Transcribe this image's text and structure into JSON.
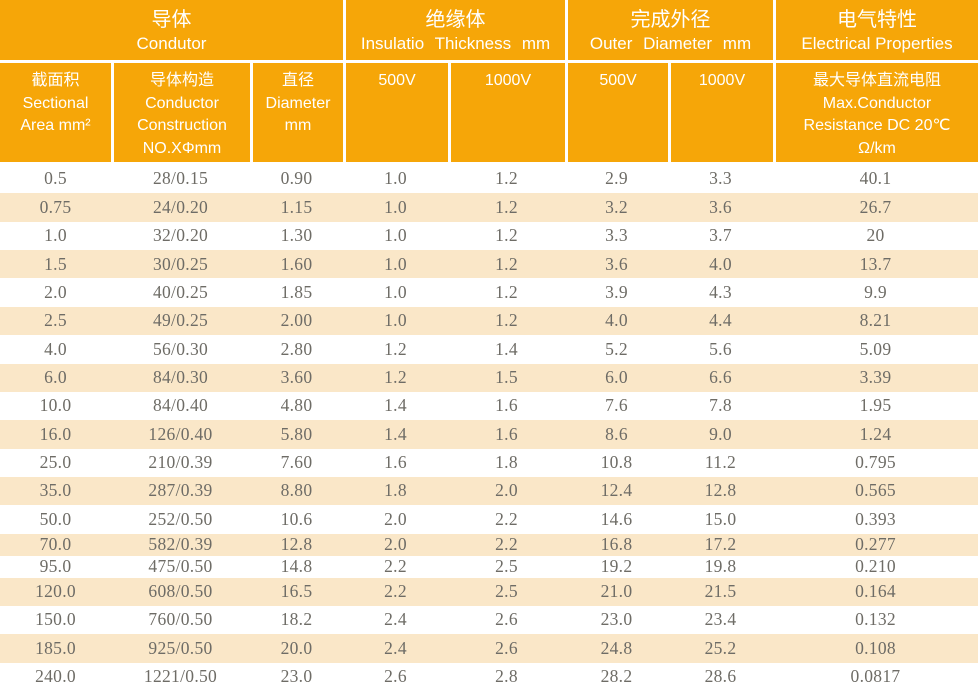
{
  "colors": {
    "header_bg": "#F6A608",
    "row_alt_bg": "#FAE7C8",
    "header_text": "#FFFFFF",
    "data_text": "#6E6C66"
  },
  "table": {
    "groups": [
      {
        "zh": "导体",
        "en": "Condutor"
      },
      {
        "zh": "绝缘体",
        "en": "Insulatio Thickness mm"
      },
      {
        "zh": "完成外径",
        "en": "Outer Diameter mm"
      },
      {
        "zh": "电气特性",
        "en": "Electrical Properties"
      }
    ],
    "columns": [
      {
        "id": "sectional-area",
        "lines": [
          "截面积",
          "Sectional",
          "Area mm²"
        ]
      },
      {
        "id": "conductor-construction",
        "lines": [
          "导体构造",
          "Conductor",
          "Construction",
          "NO.XΦmm"
        ]
      },
      {
        "id": "diameter",
        "lines": [
          "直径",
          "Diameter",
          "mm"
        ]
      },
      {
        "id": "insulation-500v",
        "lines": [
          "500V"
        ]
      },
      {
        "id": "insulation-1000v",
        "lines": [
          "1000V"
        ]
      },
      {
        "id": "outer-500v",
        "lines": [
          "500V"
        ]
      },
      {
        "id": "outer-1000v",
        "lines": [
          "1000V"
        ]
      },
      {
        "id": "max-resistance",
        "lines": [
          "最大导体直流电阻",
          "Max.Conductor",
          "Resistance DC 20℃",
          "Ω/km"
        ]
      }
    ],
    "rows": [
      [
        "0.5",
        "28/0.15",
        "0.90",
        "1.0",
        "1.2",
        "2.9",
        "3.3",
        "40.1"
      ],
      [
        "0.75",
        "24/0.20",
        "1.15",
        "1.0",
        "1.2",
        "3.2",
        "3.6",
        "26.7"
      ],
      [
        "1.0",
        "32/0.20",
        "1.30",
        "1.0",
        "1.2",
        "3.3",
        "3.7",
        "20"
      ],
      [
        "1.5",
        "30/0.25",
        "1.60",
        "1.0",
        "1.2",
        "3.6",
        "4.0",
        "13.7"
      ],
      [
        "2.0",
        "40/0.25",
        "1.85",
        "1.0",
        "1.2",
        "3.9",
        "4.3",
        "9.9"
      ],
      [
        "2.5",
        "49/0.25",
        "2.00",
        "1.0",
        "1.2",
        "4.0",
        "4.4",
        "8.21"
      ],
      [
        "4.0",
        "56/0.30",
        "2.80",
        "1.2",
        "1.4",
        "5.2",
        "5.6",
        "5.09"
      ],
      [
        "6.0",
        "84/0.30",
        "3.60",
        "1.2",
        "1.5",
        "6.0",
        "6.6",
        "3.39"
      ],
      [
        "10.0",
        "84/0.40",
        "4.80",
        "1.4",
        "1.6",
        "7.6",
        "7.8",
        "1.95"
      ],
      [
        "16.0",
        "126/0.40",
        "5.80",
        "1.4",
        "1.6",
        "8.6",
        "9.0",
        "1.24"
      ],
      [
        "25.0",
        "210/0.39",
        "7.60",
        "1.6",
        "1.8",
        "10.8",
        "11.2",
        "0.795"
      ],
      [
        "35.0",
        "287/0.39",
        "8.80",
        "1.8",
        "2.0",
        "12.4",
        "12.8",
        "0.565"
      ],
      [
        "50.0",
        "252/0.50",
        "10.6",
        "2.0",
        "2.2",
        "14.6",
        "15.0",
        "0.393"
      ],
      [
        "70.0",
        "582/0.39",
        "12.8",
        "2.0",
        "2.2",
        "16.8",
        "17.2",
        "0.277"
      ],
      [
        "95.0",
        "475/0.50",
        "14.8",
        "2.2",
        "2.5",
        "19.2",
        "19.8",
        "0.210"
      ],
      [
        "120.0",
        "608/0.50",
        "16.5",
        "2.2",
        "2.5",
        "21.0",
        "21.5",
        "0.164"
      ],
      [
        "150.0",
        "760/0.50",
        "18.2",
        "2.4",
        "2.6",
        "23.0",
        "23.4",
        "0.132"
      ],
      [
        "185.0",
        "925/0.50",
        "20.0",
        "2.4",
        "2.6",
        "24.8",
        "25.2",
        "0.108"
      ],
      [
        "240.0",
        "1221/0.50",
        "23.0",
        "2.6",
        "2.8",
        "28.2",
        "28.6",
        "0.0817"
      ]
    ]
  }
}
